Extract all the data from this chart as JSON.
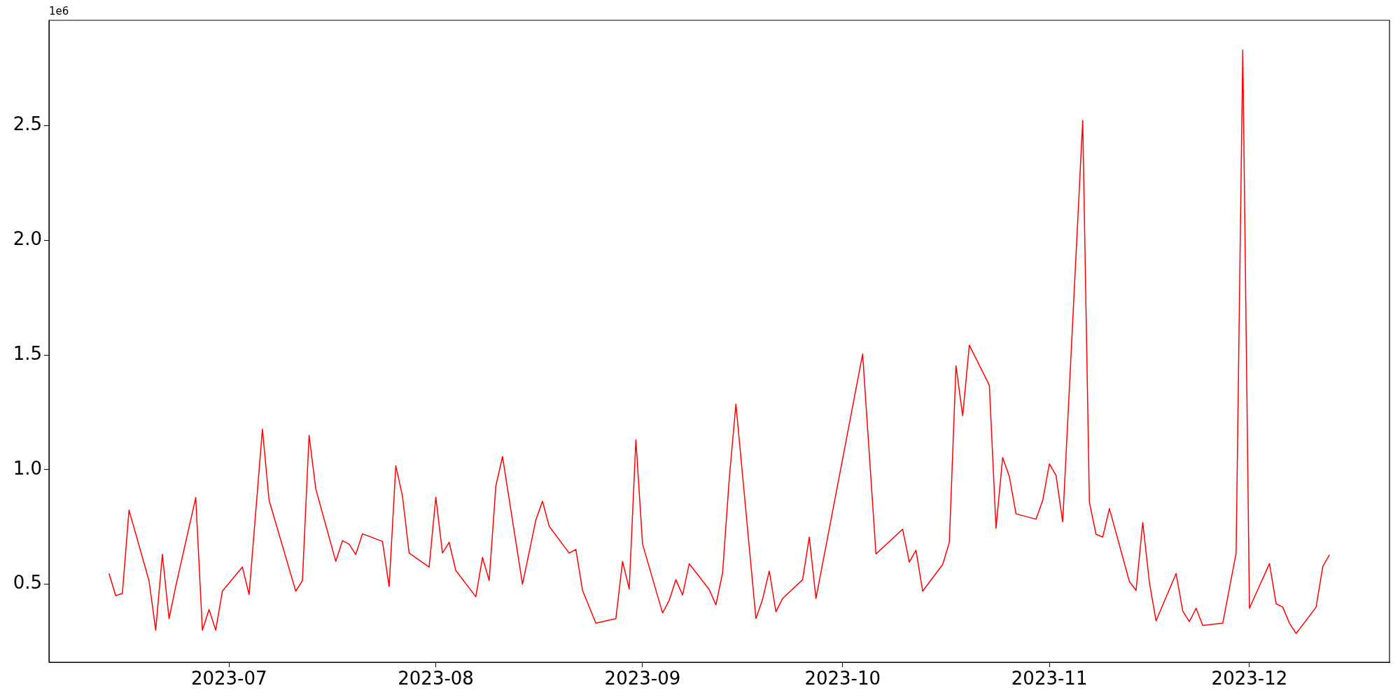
{
  "chart_data": {
    "type": "line",
    "color": "#ff0000",
    "annotations": [
      "1e6"
    ],
    "x": [
      "2023-06-13",
      "2023-06-14",
      "2023-06-15",
      "2023-06-16",
      "2023-06-19",
      "2023-06-20",
      "2023-06-21",
      "2023-06-22",
      "2023-06-23",
      "2023-06-26",
      "2023-06-27",
      "2023-06-28",
      "2023-06-29",
      "2023-06-30",
      "2023-07-03",
      "2023-07-04",
      "2023-07-06",
      "2023-07-07",
      "2023-07-11",
      "2023-07-12",
      "2023-07-13",
      "2023-07-14",
      "2023-07-17",
      "2023-07-18",
      "2023-07-19",
      "2023-07-20",
      "2023-07-21",
      "2023-07-24",
      "2023-07-25",
      "2023-07-26",
      "2023-07-27",
      "2023-07-28",
      "2023-07-31",
      "2023-08-01",
      "2023-08-02",
      "2023-08-03",
      "2023-08-04",
      "2023-08-07",
      "2023-08-08",
      "2023-08-09",
      "2023-08-10",
      "2023-08-11",
      "2023-08-14",
      "2023-08-16",
      "2023-08-17",
      "2023-08-18",
      "2023-08-21",
      "2023-08-22",
      "2023-08-23",
      "2023-08-25",
      "2023-08-28",
      "2023-08-29",
      "2023-08-30",
      "2023-08-31",
      "2023-09-01",
      "2023-09-04",
      "2023-09-05",
      "2023-09-06",
      "2023-09-07",
      "2023-09-08",
      "2023-09-11",
      "2023-09-12",
      "2023-09-13",
      "2023-09-14",
      "2023-09-15",
      "2023-09-18",
      "2023-09-19",
      "2023-09-20",
      "2023-09-21",
      "2023-09-22",
      "2023-09-25",
      "2023-09-26",
      "2023-09-27",
      "2023-10-04",
      "2023-10-06",
      "2023-10-10",
      "2023-10-11",
      "2023-10-12",
      "2023-10-13",
      "2023-10-16",
      "2023-10-17",
      "2023-10-18",
      "2023-10-19",
      "2023-10-20",
      "2023-10-23",
      "2023-10-24",
      "2023-10-25",
      "2023-10-26",
      "2023-10-27",
      "2023-10-30",
      "2023-10-31",
      "2023-11-01",
      "2023-11-02",
      "2023-11-03",
      "2023-11-06",
      "2023-11-07",
      "2023-11-08",
      "2023-11-09",
      "2023-11-10",
      "2023-11-13",
      "2023-11-14",
      "2023-11-15",
      "2023-11-16",
      "2023-11-17",
      "2023-11-20",
      "2023-11-21",
      "2023-11-22",
      "2023-11-23",
      "2023-11-24",
      "2023-11-27",
      "2023-11-29",
      "2023-11-30",
      "2023-12-01",
      "2023-12-04",
      "2023-12-05",
      "2023-12-06",
      "2023-12-07",
      "2023-12-08",
      "2023-12-11",
      "2023-12-12",
      "2023-12-13"
    ],
    "values": [
      0.547,
      0.45,
      0.46,
      0.823,
      0.515,
      0.3,
      0.63,
      0.35,
      0.49,
      0.878,
      0.3,
      0.39,
      0.3,
      0.47,
      0.575,
      0.455,
      1.177,
      0.866,
      0.47,
      0.516,
      1.15,
      0.916,
      0.6,
      0.69,
      0.675,
      0.63,
      0.72,
      0.687,
      0.49,
      1.017,
      0.885,
      0.636,
      0.575,
      0.88,
      0.636,
      0.683,
      0.56,
      0.446,
      0.617,
      0.516,
      0.928,
      1.057,
      0.5,
      0.78,
      0.862,
      0.753,
      0.636,
      0.652,
      0.473,
      0.33,
      0.35,
      0.6,
      0.48,
      1.13,
      0.675,
      0.375,
      0.43,
      0.52,
      0.453,
      0.59,
      0.477,
      0.41,
      0.55,
      0.96,
      1.286,
      0.35,
      0.435,
      0.558,
      0.38,
      0.438,
      0.52,
      0.706,
      0.438,
      1.504,
      0.632,
      0.74,
      0.597,
      0.648,
      0.47,
      0.586,
      0.683,
      1.453,
      1.235,
      1.543,
      1.368,
      0.745,
      1.053,
      0.97,
      0.807,
      0.784,
      0.866,
      1.025,
      0.975,
      0.772,
      2.523,
      0.858,
      0.718,
      0.706,
      0.83,
      0.512,
      0.473,
      0.77,
      0.508,
      0.34,
      0.547,
      0.383,
      0.337,
      0.395,
      0.32,
      0.33,
      0.636,
      2.83,
      0.395,
      0.59,
      0.415,
      0.4,
      0.33,
      0.285,
      0.4,
      0.578,
      0.628
    ],
    "xlim": [
      "2023-06-04",
      "2023-12-22"
    ],
    "xticks": [
      "2023-07",
      "2023-08",
      "2023-09",
      "2023-10",
      "2023-11",
      "2023-12"
    ],
    "ylim": [
      0.16,
      2.96
    ],
    "yticks": [
      0.5,
      {
        "value": 1,
        "label": "1.0"
      },
      1.5,
      {
        "value": 2,
        "label": "2.0"
      },
      2.5
    ]
  }
}
